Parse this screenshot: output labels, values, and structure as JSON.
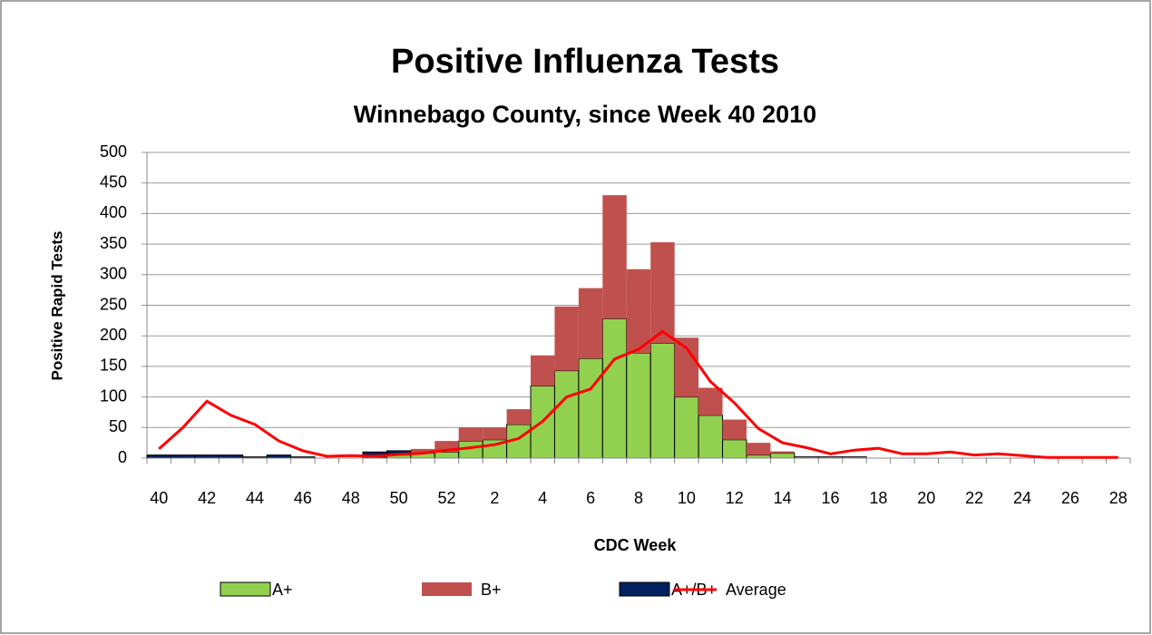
{
  "chart_data": {
    "type": "bar",
    "stacked": true,
    "title": "Positive Influenza Tests",
    "subtitle": "Winnebago County, since Week 40 2010",
    "x_label": "CDC Week",
    "y_label": "Positive Rapid Tests",
    "categories": [
      "40",
      null,
      "42",
      null,
      "44",
      null,
      "46",
      null,
      "48",
      null,
      "50",
      null,
      "52",
      null,
      "2",
      null,
      "4",
      null,
      "6",
      null,
      "8",
      null,
      "10",
      null,
      "12",
      null,
      "14",
      null,
      "16",
      null,
      "18",
      null,
      "20",
      null,
      "22",
      null,
      "24",
      null,
      "26",
      null,
      "28"
    ],
    "series": [
      {
        "name": "A+",
        "type": "bar",
        "color": "#92d050",
        "values": [
          0,
          0,
          0,
          0,
          0,
          0,
          0,
          0,
          0,
          0,
          5,
          8,
          10,
          28,
          30,
          55,
          118,
          143,
          163,
          228,
          172,
          188,
          100,
          70,
          30,
          5,
          8,
          2,
          2,
          2,
          0,
          0,
          0,
          0,
          0,
          0,
          0,
          0,
          0,
          0,
          0
        ]
      },
      {
        "name": "B+",
        "type": "bar",
        "color": "#c0504d",
        "values": [
          0,
          0,
          0,
          0,
          0,
          0,
          0,
          0,
          0,
          0,
          2,
          7,
          18,
          22,
          20,
          25,
          50,
          105,
          115,
          202,
          137,
          165,
          97,
          45,
          33,
          20,
          3,
          0,
          0,
          0,
          0,
          0,
          0,
          0,
          0,
          0,
          0,
          0,
          0,
          0,
          0
        ]
      },
      {
        "name": "A+/B+",
        "type": "bar",
        "color": "#002060",
        "values": [
          5,
          5,
          5,
          5,
          2,
          5,
          2,
          0,
          0,
          10,
          5,
          0,
          0,
          0,
          0,
          0,
          0,
          0,
          0,
          0,
          0,
          0,
          0,
          0,
          0,
          0,
          0,
          0,
          0,
          0,
          0,
          0,
          0,
          0,
          0,
          0,
          0,
          0,
          0,
          0,
          0
        ]
      },
      {
        "name": "Average",
        "type": "line",
        "color": "#ff0000",
        "values": [
          15,
          50,
          93,
          70,
          55,
          28,
          12,
          3,
          4,
          3,
          6,
          8,
          13,
          17,
          22,
          32,
          60,
          100,
          113,
          162,
          178,
          207,
          180,
          125,
          90,
          48,
          25,
          17,
          7,
          13,
          16,
          7,
          7,
          10,
          5,
          7,
          4,
          1,
          1,
          1,
          1
        ]
      }
    ],
    "ylim": [
      0,
      500
    ],
    "yticks": [
      0,
      50,
      100,
      150,
      200,
      250,
      300,
      350,
      400,
      450,
      500
    ],
    "grid": true,
    "legend": "bottom"
  }
}
